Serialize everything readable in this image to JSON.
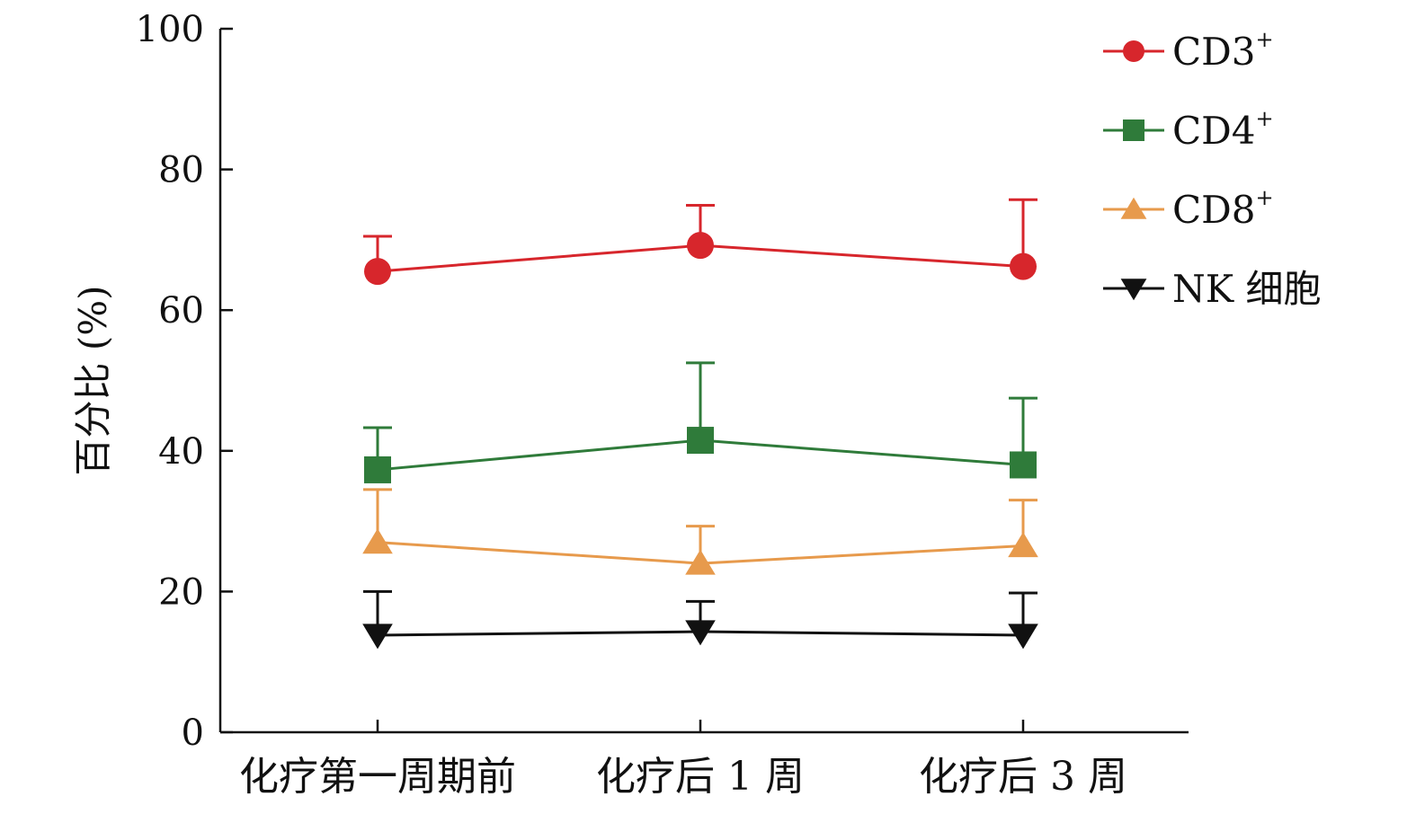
{
  "chart_data": {
    "type": "line",
    "categories": [
      "化疗第一周期前",
      "化疗后 1 周",
      "化疗后 3 周"
    ],
    "ylabel": "百分比 (%)",
    "xlabel": "",
    "ylim": [
      0,
      100
    ],
    "yticks": [
      0,
      20,
      40,
      60,
      80,
      100
    ],
    "grid": false,
    "legend_position": "top-right",
    "series": [
      {
        "name": "CD3",
        "sup": "+",
        "marker": "circle",
        "color": "#d7262c",
        "values": [
          65.5,
          69.2,
          66.2
        ],
        "error": [
          5.0,
          5.7,
          9.5
        ]
      },
      {
        "name": "CD4",
        "sup": "+",
        "marker": "square",
        "color": "#2f7b3a",
        "values": [
          37.3,
          41.5,
          38.0
        ],
        "error": [
          6.0,
          11.0,
          9.5
        ]
      },
      {
        "name": "CD8",
        "sup": "+",
        "marker": "triangle-up",
        "color": "#e79a4c",
        "values": [
          27.0,
          24.0,
          26.5
        ],
        "error": [
          7.5,
          5.3,
          6.5
        ]
      },
      {
        "name": "NK 细胞",
        "sup": "",
        "marker": "triangle-down",
        "color": "#111111",
        "values": [
          13.8,
          14.3,
          13.8
        ],
        "error": [
          6.2,
          4.3,
          6.0
        ]
      }
    ]
  }
}
